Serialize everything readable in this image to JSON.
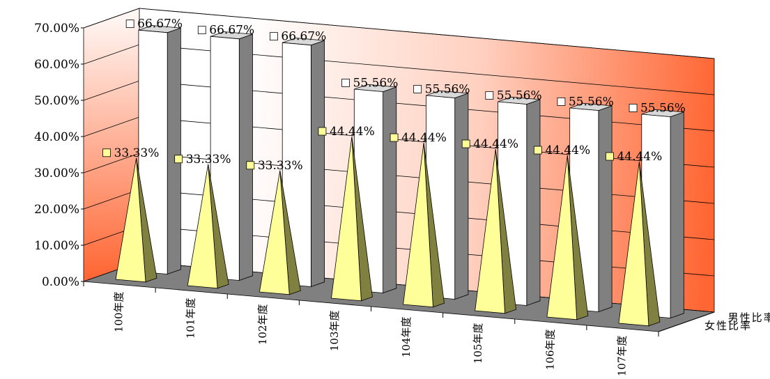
{
  "chart_data": {
    "type": "bar",
    "title": "",
    "xlabel": "",
    "ylabel": "",
    "ylim": [
      0,
      70
    ],
    "yticks": [
      "0.00%",
      "10.00%",
      "20.00%",
      "30.00%",
      "40.00%",
      "50.00%",
      "60.00%",
      "70.00%"
    ],
    "categories": [
      "100年度",
      "101年度",
      "102年度",
      "103年度",
      "104年度",
      "105年度",
      "106年度",
      "107年度"
    ],
    "series": [
      {
        "name": "女性比率",
        "shape": "pyramid",
        "color": "#ffff99",
        "values": [
          33.33,
          33.33,
          33.33,
          44.44,
          44.44,
          44.44,
          44.44,
          44.44
        ],
        "labels": [
          "33.33%",
          "33.33%",
          "33.33%",
          "44.44%",
          "44.44%",
          "44.44%",
          "44.44%",
          "44.44%"
        ]
      },
      {
        "name": "男性比率",
        "shape": "column",
        "color": "#ffffff",
        "values": [
          66.67,
          66.67,
          66.67,
          55.56,
          55.56,
          55.56,
          55.56,
          55.56
        ],
        "labels": [
          "66.67%",
          "66.67%",
          "66.67%",
          "55.56%",
          "55.56%",
          "55.56%",
          "55.56%",
          "55.56%"
        ]
      }
    ],
    "colors": {
      "wall_gradient_light": "#ffffff",
      "wall_gradient_dark": "#ff6633",
      "floor": "#808080",
      "pyramid_shadow": "#808040",
      "column_side": "#808080"
    },
    "grid": true,
    "three_d": true,
    "legend": "none"
  }
}
